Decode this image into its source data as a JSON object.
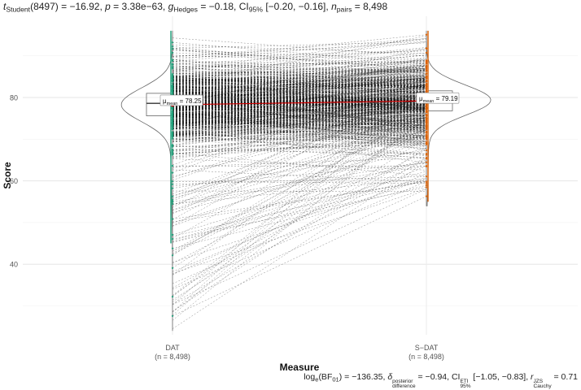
{
  "header": {
    "t_label": "t",
    "t_sub": "Student",
    "t_rest": "(8497) = −16.92, ",
    "p_label": "p",
    "p_rest": " = 3.38e−63, ",
    "g_label": "g",
    "g_sub": "Hedges",
    "g_rest": " = −0.18, CI",
    "ci_sub": "95%",
    "ci_rest": " [−0.20, −0.16], ",
    "n_label": "n",
    "n_sub": "pairs",
    "n_rest": " = 8,498"
  },
  "footer": {
    "log_label": "log",
    "log_sub": "e",
    "bf_open": "(BF",
    "bf_sub": "01",
    "bf_rest": ") = −136.35, ",
    "delta_label": "δ",
    "delta_sup": "posterior",
    "delta_sub": "difference",
    "delta_rest": " = −0.94, CI",
    "ci_sup": "ETI",
    "ci_sub": "95%",
    "ci_rest": " [−1.05, −0.83], ",
    "r_label": "r",
    "r_sup": "JZS",
    "r_sub": "Cauchy",
    "r_rest": " = 0.71"
  },
  "chart_data": {
    "type": "paired violin-box plot",
    "xlabel": "Measure",
    "ylabel": "Score",
    "yticks": [
      40,
      60,
      80
    ],
    "ylim": [
      22,
      98
    ],
    "grid": true,
    "groups": [
      {
        "name": "DAT",
        "n_label": "(n = 8,498)",
        "color": "#1b9e77",
        "mean": 78.25,
        "mean_label_prefix": "μ",
        "mean_label_sub": "mean",
        "mean_label_value": " = 78.25",
        "q1": 75.6,
        "median": 78.6,
        "q3": 81.0,
        "whisker_low": 45,
        "whisker_high": 96,
        "min": 24,
        "max": 96
      },
      {
        "name": "S−DAT",
        "n_label": "(n = 8,498)",
        "color": "#d95f02",
        "mean": 79.19,
        "mean_label_prefix": "μ",
        "mean_label_sub": "mean",
        "mean_label_value": " = 79.19",
        "q1": 76.8,
        "median": 79.2,
        "q3": 81.6,
        "whisker_low": 55,
        "whisker_high": 96,
        "min": 54,
        "max": 96
      }
    ],
    "mean_line_color": "#cf0000",
    "n_pairs": 8498
  }
}
